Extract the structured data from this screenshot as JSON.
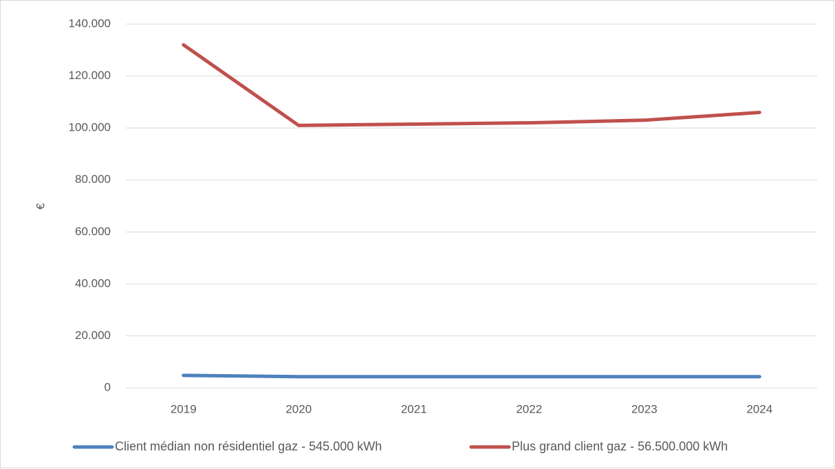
{
  "chart_data": {
    "type": "line",
    "y_label": "€",
    "categories": [
      "2019",
      "2020",
      "2021",
      "2022",
      "2023",
      "2024"
    ],
    "series": [
      {
        "name": "Client médian non résidentiel gaz - 545.000 kWh",
        "color": "#4f81bd",
        "values": [
          4800,
          4300,
          4300,
          4300,
          4300,
          4300
        ]
      },
      {
        "name": "Plus grand client gaz - 56.500.000 kWh",
        "color": "#c0504d",
        "values": [
          132000,
          101000,
          101500,
          102000,
          103000,
          106000
        ]
      }
    ],
    "ylim": [
      0,
      140000
    ],
    "yticks": [
      0,
      {
        "value": 20000,
        "label": "20.000"
      },
      {
        "value": 40000,
        "label": "40.000"
      },
      {
        "value": 60000,
        "label": "60.000"
      },
      {
        "value": 80000,
        "label": "80.000"
      },
      {
        "value": 100000,
        "label": "100.000"
      },
      {
        "value": 120000,
        "label": "120.000"
      },
      {
        "value": 140000,
        "label": "140.000"
      }
    ],
    "grid": true,
    "legend": "bottom"
  }
}
